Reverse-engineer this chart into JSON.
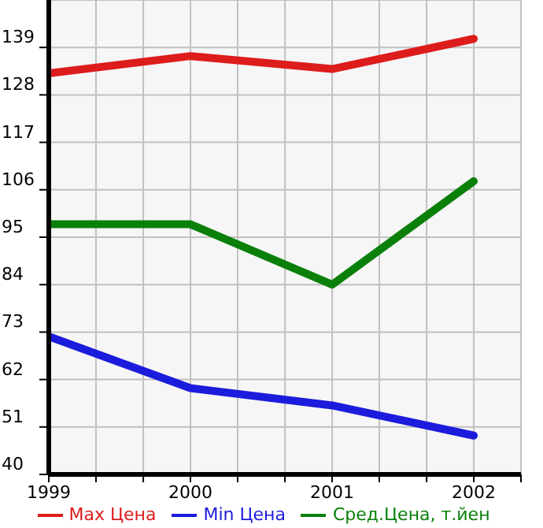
{
  "chart_data": {
    "type": "line",
    "x": [
      1999,
      2000,
      2001,
      2002
    ],
    "series": [
      {
        "name": "Max Цена",
        "color": "#dd1c1c",
        "values": [
          133,
          137,
          134,
          141
        ]
      },
      {
        "name": "Min Цена",
        "color": "#1c1cdd",
        "values": [
          72,
          60,
          56,
          49
        ]
      },
      {
        "name": "Сред.Цена, т.йен",
        "color": "#0a800a",
        "values": [
          98,
          98,
          84,
          108
        ]
      }
    ],
    "xlim": [
      1999,
      2002.333
    ],
    "xticks": [
      1999,
      {
        "value": 1999.333,
        "label": null
      },
      {
        "value": 1999.667,
        "label": null
      },
      2000,
      {
        "value": 2000.333,
        "label": null
      },
      {
        "value": 2000.667,
        "label": null
      },
      2001,
      {
        "value": 2001.333,
        "label": null
      },
      {
        "value": 2001.667,
        "label": null
      },
      2002,
      {
        "value": 2002.333,
        "label": null
      }
    ],
    "ylim": [
      40,
      150
    ],
    "yticks": [
      40,
      51,
      62,
      73,
      84,
      95,
      106,
      117,
      128,
      139
    ],
    "grid": true,
    "legend": "bottom",
    "marker": "none",
    "line_style": "solid"
  }
}
